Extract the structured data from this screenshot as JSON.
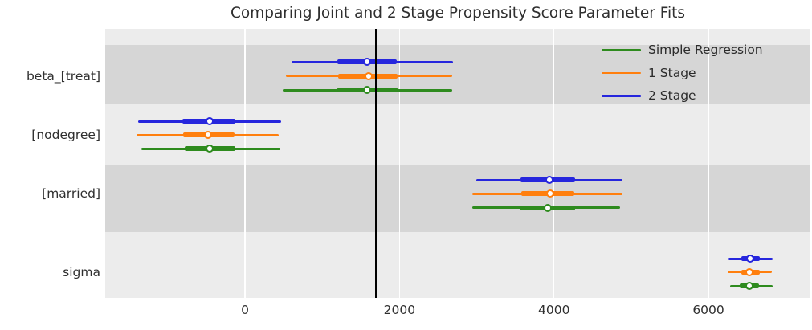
{
  "title": "Comparing Joint and 2 Stage Propensity Score Parameter Fits",
  "colors": {
    "simple_regression": "#2e8b1e",
    "one_stage": "#ff7f0e",
    "two_stage": "#2626dd",
    "reference_line": "#000000",
    "band_dark": "#d6d6d6",
    "band_light": "#ececec",
    "gridline": "#ffffff"
  },
  "legend": [
    {
      "label": "Simple Regression",
      "color": "#2e8b1e"
    },
    {
      "label": "1 Stage",
      "color": "#ff7f0e"
    },
    {
      "label": "2 Stage",
      "color": "#2626dd"
    }
  ],
  "chart_data": {
    "type": "forest",
    "title": "Comparing Joint and 2 Stage Propensity Score Parameter Fits",
    "parameters": [
      "beta_[treat]",
      "[nodegree]",
      "[married]",
      "sigma"
    ],
    "x_ticks": [
      0,
      2000,
      4000,
      6000
    ],
    "xlim": [
      -1810,
      7320
    ],
    "reference_line_x": 1690,
    "grid": "white-vertical-on-gray",
    "legend_position": "upper-right",
    "series_order_top_to_bottom": [
      "2 Stage",
      "1 Stage",
      "Simple Regression"
    ],
    "series": [
      {
        "name": "2 Stage",
        "color": "#2626dd",
        "estimates": [
          {
            "parameter": "beta_[treat]",
            "mean": 1580,
            "ci94": [
              600,
              2690
            ],
            "ci50": [
              1200,
              1960
            ]
          },
          {
            "parameter": "[nodegree]",
            "mean": -460,
            "ci94": [
              -1380,
              470
            ],
            "ci50": [
              -810,
              -130
            ]
          },
          {
            "parameter": "[married]",
            "mean": 3940,
            "ci94": [
              2990,
              4890
            ],
            "ci50": [
              3570,
              4270
            ]
          },
          {
            "parameter": "sigma",
            "mean": 6540,
            "ci94": [
              6260,
              6830
            ],
            "ci50": [
              6430,
              6670
            ]
          }
        ]
      },
      {
        "name": "1 Stage",
        "color": "#ff7f0e",
        "estimates": [
          {
            "parameter": "beta_[treat]",
            "mean": 1600,
            "ci94": [
              530,
              2680
            ],
            "ci50": [
              1210,
              1970
            ]
          },
          {
            "parameter": "[nodegree]",
            "mean": -480,
            "ci94": [
              -1400,
              440
            ],
            "ci50": [
              -800,
              -140
            ]
          },
          {
            "parameter": "[married]",
            "mean": 3950,
            "ci94": [
              2940,
              4890
            ],
            "ci50": [
              3580,
              4260
            ]
          },
          {
            "parameter": "sigma",
            "mean": 6530,
            "ci94": [
              6250,
              6820
            ],
            "ci50": [
              6430,
              6670
            ]
          }
        ]
      },
      {
        "name": "Simple Regression",
        "color": "#2e8b1e",
        "estimates": [
          {
            "parameter": "beta_[treat]",
            "mean": 1580,
            "ci94": [
              490,
              2680
            ],
            "ci50": [
              1200,
              1970
            ]
          },
          {
            "parameter": "[nodegree]",
            "mean": -460,
            "ci94": [
              -1340,
              460
            ],
            "ci50": [
              -780,
              -130
            ]
          },
          {
            "parameter": "[married]",
            "mean": 3920,
            "ci94": [
              2940,
              4860
            ],
            "ci50": [
              3560,
              4270
            ]
          },
          {
            "parameter": "sigma",
            "mean": 6530,
            "ci94": [
              6280,
              6830
            ],
            "ci50": [
              6410,
              6650
            ]
          }
        ]
      }
    ]
  }
}
